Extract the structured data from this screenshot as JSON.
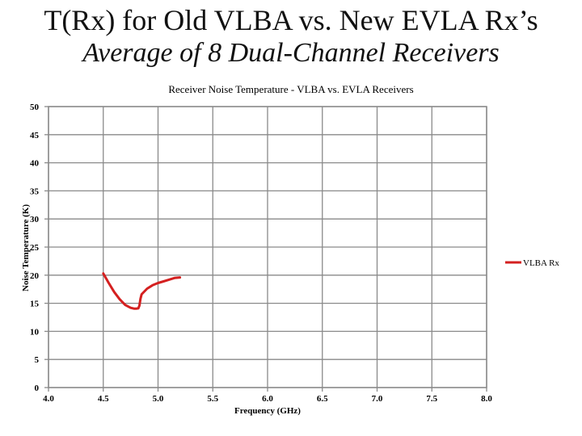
{
  "slide": {
    "title": "T(Rx) for Old VLBA vs. New EVLA Rx’s",
    "subtitle": "Average of 8 Dual-Channel Receivers"
  },
  "chart_data": {
    "type": "line",
    "title": "Receiver Noise Temperature - VLBA vs. EVLA Receivers",
    "xlabel": "Frequency (GHz)",
    "ylabel": "Noise Temperature (K)",
    "xlim": [
      4.0,
      8.0
    ],
    "ylim": [
      0,
      50
    ],
    "x_ticks": [
      "4.0",
      "4.5",
      "5.0",
      "5.5",
      "6.0",
      "6.5",
      "7.0",
      "7.5",
      "8.0"
    ],
    "y_ticks": [
      "0",
      "5",
      "10",
      "15",
      "20",
      "25",
      "30",
      "35",
      "40",
      "45",
      "50"
    ],
    "grid": true,
    "legend_position": "right",
    "series": [
      {
        "name": "VLBA Rx",
        "color": "#d42020",
        "x": [
          4.5,
          4.55,
          4.6,
          4.65,
          4.7,
          4.75,
          4.78,
          4.8,
          4.82,
          4.83,
          4.84,
          4.85,
          4.9,
          4.95,
          5.0,
          5.05,
          5.1,
          5.15,
          5.2
        ],
        "y": [
          20.3,
          18.6,
          17.0,
          15.7,
          14.7,
          14.2,
          14.05,
          14.05,
          14.1,
          14.6,
          15.8,
          16.6,
          17.6,
          18.2,
          18.6,
          18.9,
          19.2,
          19.5,
          19.6
        ]
      }
    ]
  }
}
